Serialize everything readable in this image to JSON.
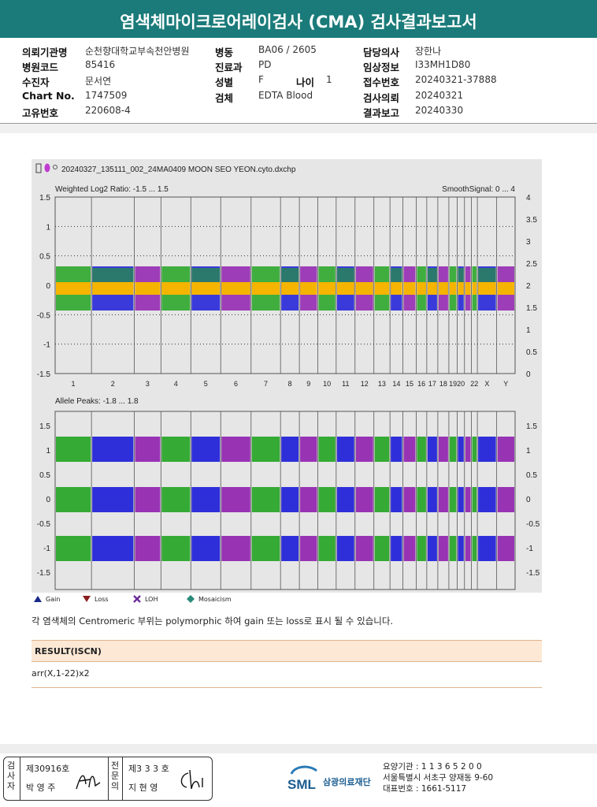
{
  "report": {
    "title": "염색체마이크로어레이검사 (CMA) 검사결과보고서"
  },
  "info": {
    "col1": [
      {
        "label": "의뢰기관명",
        "value": "순천향대학교부속천안병원"
      },
      {
        "label": "병원코드",
        "value": "85416"
      },
      {
        "label": "수진자",
        "value": "문서연"
      },
      {
        "label": "Chart No.",
        "value": "1747509"
      },
      {
        "label": "고유번호",
        "value": "220608-4"
      }
    ],
    "col2": [
      {
        "label": "병동",
        "value": "BA06 / 2605"
      },
      {
        "label": "진료과",
        "value": "PD"
      },
      {
        "label": "성별",
        "value": "F"
      },
      {
        "label": "검체",
        "value": "EDTA Blood"
      }
    ],
    "age": {
      "label": "나이",
      "value": "1"
    },
    "col3": [
      {
        "label": "담당의사",
        "value": "장한나"
      },
      {
        "label": "임상정보",
        "value": "I33MH1D80"
      },
      {
        "label": "접수번호",
        "value": "20240321-37888"
      },
      {
        "label": "검사의뢰",
        "value": "20240321"
      },
      {
        "label": "결과보고",
        "value": "20240330"
      }
    ]
  },
  "plot": {
    "filename": "20240327_135111_002_24MA0409 MOON SEO YEON.cyto.dxchp",
    "top_title": "Weighted Log2 Ratio: -1.5 ... 1.5",
    "top_right": "SmoothSignal: 0 ... 4",
    "bottom_title": "Allele Peaks: -1.8 ... 1.8",
    "top_left_ticks": [
      "1.5",
      "1",
      "0.5",
      "0",
      "-0.5",
      "-1",
      "-1.5"
    ],
    "top_right_ticks": [
      "4",
      "3.5",
      "3",
      "2.5",
      "2",
      "1.5",
      "1",
      "0.5",
      "0"
    ],
    "bottom_left_ticks": [
      "1.5",
      "1",
      "0.5",
      "0",
      "-0.5",
      "-1",
      "-1.5"
    ],
    "bottom_right_ticks": [
      "1.5",
      "1",
      "0.5",
      "0",
      "-0.5",
      "-1",
      "-1.5"
    ],
    "chromosomes": [
      "1",
      "2",
      "3",
      "4",
      "5",
      "6",
      "7",
      "8",
      "9",
      "10",
      "11",
      "12",
      "13",
      "14",
      "15",
      "16",
      "17",
      "18",
      "19",
      "20",
      "",
      "22",
      "X",
      "Y"
    ],
    "colors": {
      "green": "#21a321",
      "blue": "#1b1bd8",
      "purple": "#8f1fae",
      "orange": "#f5b400",
      "panel": "#e6e6e6"
    }
  },
  "legend": [
    {
      "icon": "gain-icon",
      "label": "Gain"
    },
    {
      "icon": "loss-icon",
      "label": "Loss"
    },
    {
      "icon": "loh-icon",
      "label": "LOH"
    },
    {
      "icon": "mosaicism-icon",
      "label": "Mosaicism"
    }
  ],
  "note": "각 염색체의 Centromeric 부위는 polymorphic 하여 gain 또는 loss로 표시 될 수 있습니다.",
  "result": {
    "heading": "RESULT(ISCN)",
    "value": "arr(X,1-22)x2"
  },
  "signatures": {
    "box1": {
      "vertical": "검사자",
      "number": "제30916호",
      "name": "박 영 주"
    },
    "box2": {
      "vertical": "전문의",
      "number": "제3 3 3 호",
      "name": "지 현 영"
    }
  },
  "institution": {
    "logo": "SML",
    "name": "삼광의료재단",
    "code": "요양기관 : 1 1 3 6 5 2 0 0",
    "address": "서울특별시 서초구 양재동 9-60",
    "phone": "대표번호 : 1661-5117"
  }
}
